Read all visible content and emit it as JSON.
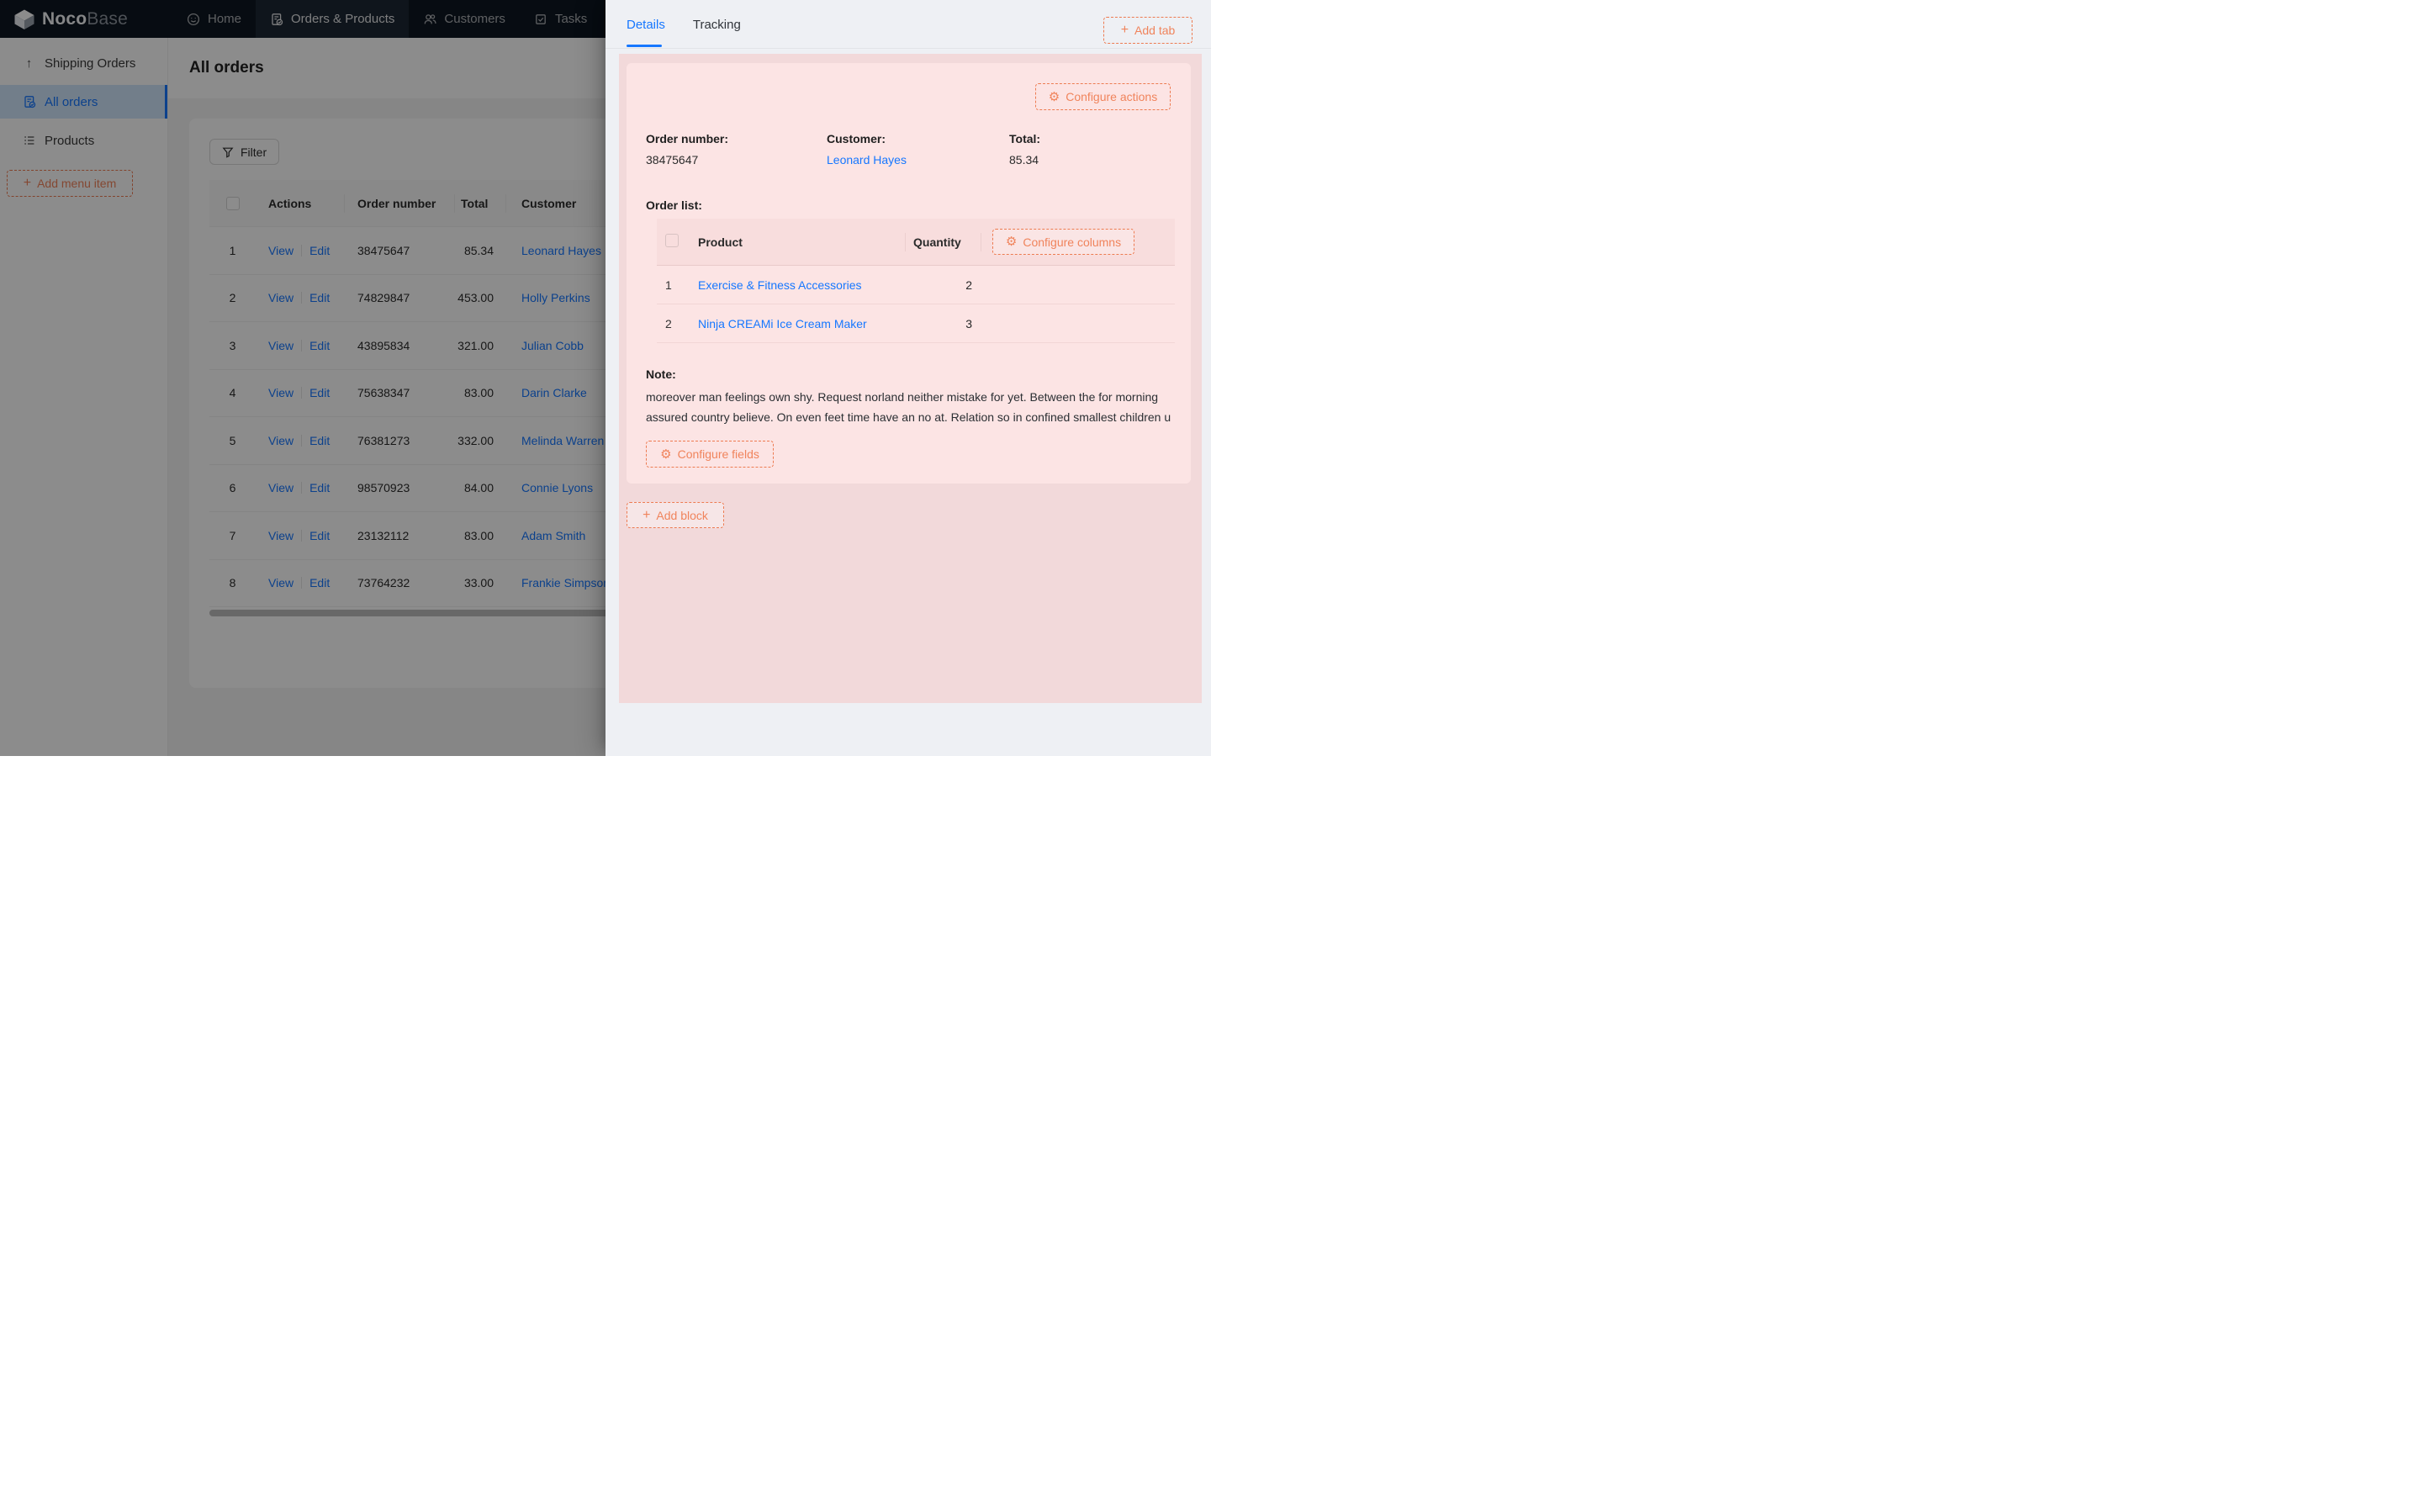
{
  "navbar": {
    "logo_primary": "Noco",
    "logo_secondary": "Base",
    "items": [
      {
        "label": "Home",
        "icon": "smile-icon",
        "active": false
      },
      {
        "label": "Orders & Products",
        "icon": "orders-icon",
        "active": true
      },
      {
        "label": "Customers",
        "icon": "team-icon",
        "active": false
      },
      {
        "label": "Tasks",
        "icon": "tasks-icon",
        "active": false
      }
    ]
  },
  "sidebar": {
    "items": [
      {
        "label": "Shipping Orders",
        "icon": "arrow-up-icon",
        "selected": false
      },
      {
        "label": "All orders",
        "icon": "order-doc-icon",
        "selected": true
      },
      {
        "label": "Products",
        "icon": "list-icon",
        "selected": false
      }
    ],
    "add_menu_item_label": "Add menu item"
  },
  "main": {
    "page_title": "All orders",
    "filter_label": "Filter",
    "add_block_label": "Add block",
    "table": {
      "columns": [
        "Actions",
        "Order number",
        "Total",
        "Customer"
      ],
      "action_labels": {
        "view": "View",
        "edit": "Edit"
      },
      "rows": [
        {
          "index": 1,
          "order_number": "38475647",
          "total": "85.34",
          "customer": "Leonard Hayes"
        },
        {
          "index": 2,
          "order_number": "74829847",
          "total": "453.00",
          "customer": "Holly Perkins"
        },
        {
          "index": 3,
          "order_number": "43895834",
          "total": "321.00",
          "customer": "Julian Cobb"
        },
        {
          "index": 4,
          "order_number": "75638347",
          "total": "83.00",
          "customer": "Darin Clarke"
        },
        {
          "index": 5,
          "order_number": "76381273",
          "total": "332.00",
          "customer": "Melinda Warren"
        },
        {
          "index": 6,
          "order_number": "98570923",
          "total": "84.00",
          "customer": "Connie Lyons"
        },
        {
          "index": 7,
          "order_number": "23132112",
          "total": "83.00",
          "customer": "Adam Smith"
        },
        {
          "index": 8,
          "order_number": "73764232",
          "total": "33.00",
          "customer": "Frankie Simpson"
        }
      ]
    }
  },
  "drawer": {
    "tabs": [
      {
        "label": "Details",
        "active": true
      },
      {
        "label": "Tracking",
        "active": false
      }
    ],
    "add_tab_label": "Add tab",
    "details_block": {
      "configure_actions_label": "Configure actions",
      "fields": [
        {
          "label": "Order number:",
          "value": "38475647",
          "is_link": false
        },
        {
          "label": "Customer:",
          "value": "Leonard Hayes",
          "is_link": true
        },
        {
          "label": "Total:",
          "value": "85.34",
          "is_link": false
        }
      ],
      "order_list": {
        "label": "Order list:",
        "columns": [
          "Product",
          "Quantity"
        ],
        "configure_columns_label": "Configure columns",
        "rows": [
          {
            "index": 1,
            "product": "Exercise & Fitness Accessories",
            "quantity": 2
          },
          {
            "index": 2,
            "product": "Ninja CREAMi Ice Cream Maker",
            "quantity": 3
          }
        ]
      },
      "note_label": "Note:",
      "note_text": "moreover man feelings own shy. Request norland neither mistake for yet. Between the for morning assured country believe. On even feet time have an no at. Relation so in confined smallest children u",
      "configure_fields_label": "Configure fields"
    },
    "add_block_label": "Add block"
  },
  "colors": {
    "accent_orange": "#ED7B51",
    "accent_orange_text": "#F0845C",
    "link_blue": "#1677FF",
    "navbar_bg": "#0E1621",
    "pink_page": "#F2D9DA",
    "pink_block": "#FCE4E4",
    "drawer_bg": "#EEF0F4",
    "sidebar_selected_bg": "#CFE5FB"
  }
}
